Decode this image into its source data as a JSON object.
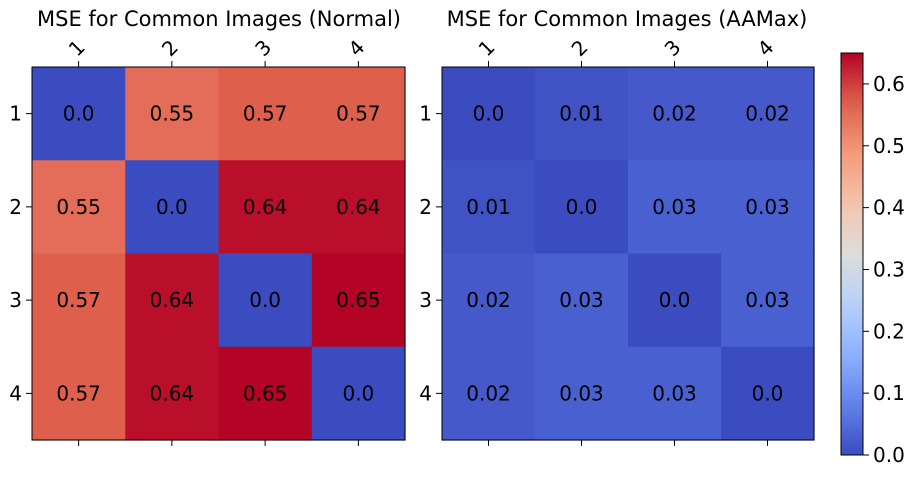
{
  "chart_data": [
    {
      "type": "heatmap",
      "title": "MSE for Common Images (Normal)",
      "xlabel": "",
      "ylabel": "",
      "x_ticks": [
        "1",
        "2",
        "3",
        "4"
      ],
      "y_ticks": [
        "1",
        "2",
        "3",
        "4"
      ],
      "values": [
        [
          0.0,
          0.55,
          0.57,
          0.57
        ],
        [
          0.55,
          0.0,
          0.64,
          0.64
        ],
        [
          0.57,
          0.64,
          0.0,
          0.65
        ],
        [
          0.57,
          0.64,
          0.65,
          0.0
        ]
      ],
      "labels": [
        [
          "0.0",
          "0.55",
          "0.57",
          "0.57"
        ],
        [
          "0.55",
          "0.0",
          "0.64",
          "0.64"
        ],
        [
          "0.57",
          "0.64",
          "0.0",
          "0.65"
        ],
        [
          "0.57",
          "0.64",
          "0.65",
          "0.0"
        ]
      ]
    },
    {
      "type": "heatmap",
      "title": "MSE for Common Images (AAMax)",
      "xlabel": "",
      "ylabel": "",
      "x_ticks": [
        "1",
        "2",
        "3",
        "4"
      ],
      "y_ticks": [
        "1",
        "2",
        "3",
        "4"
      ],
      "values": [
        [
          0.0,
          0.01,
          0.02,
          0.02
        ],
        [
          0.01,
          0.0,
          0.03,
          0.03
        ],
        [
          0.02,
          0.03,
          0.0,
          0.03
        ],
        [
          0.02,
          0.03,
          0.03,
          0.0
        ]
      ],
      "labels": [
        [
          "0.0",
          "0.01",
          "0.02",
          "0.02"
        ],
        [
          "0.01",
          "0.0",
          "0.03",
          "0.03"
        ],
        [
          "0.02",
          "0.03",
          "0.0",
          "0.03"
        ],
        [
          "0.02",
          "0.03",
          "0.03",
          "0.0"
        ]
      ]
    }
  ],
  "colorbar": {
    "colormap": "coolwarm",
    "range": [
      0.0,
      0.65
    ],
    "ticks": [
      "0.0",
      "0.1",
      "0.2",
      "0.3",
      "0.4",
      "0.5",
      "0.6"
    ]
  }
}
